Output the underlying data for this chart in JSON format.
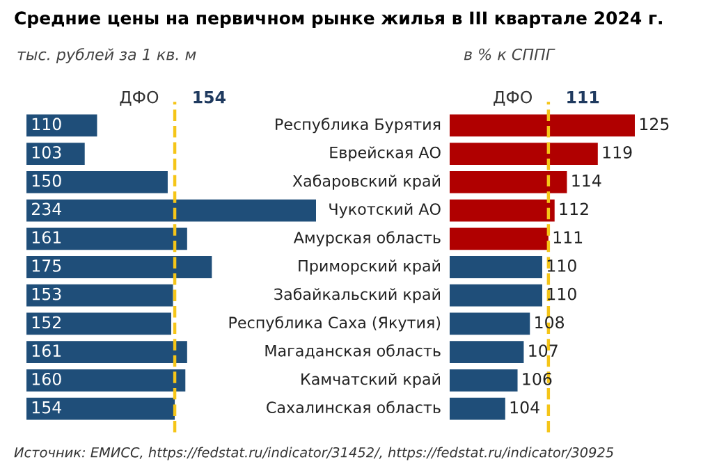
{
  "chart_data": [
    {
      "type": "bar",
      "orientation": "horizontal",
      "title": "Средние цены на первичном рынке жилья в III квартале 2024 г.",
      "subtitle": "тыс. рублей за 1 кв. м",
      "categories": [
        "Республика Бурятия",
        "Еврейская АО",
        "Хабаровский край",
        "Чукотский АО",
        "Амурская область",
        "Приморский край",
        "Забайкальский край",
        "Республика Саха (Якутия)",
        "Магаданская область",
        "Камчатский край",
        "Сахалинская область"
      ],
      "values": [
        110,
        103,
        150,
        234,
        161,
        175,
        153,
        152,
        161,
        160,
        154
      ],
      "color": "#1f4e79",
      "xlim": [
        70,
        234
      ],
      "data_labels": true,
      "ref_lines": [
        {
          "axis": "x",
          "value": 154,
          "label": "ДФО",
          "color": "#f5c518",
          "line_style": "dashed"
        }
      ],
      "annotations": [
        {
          "text": "154",
          "x": 154
        },
        "Источник: ЕМИСС, https://fedstat.ru/indicator/31452/, https://fedstat.ru/indicator/30925"
      ]
    },
    {
      "type": "bar",
      "orientation": "horizontal",
      "subtitle": "в % к СППГ",
      "categories": [
        null,
        null,
        null,
        null,
        null,
        null,
        null,
        null,
        null,
        null,
        null
      ],
      "values": [
        125,
        119,
        114,
        112,
        111,
        110,
        110,
        108,
        107,
        106,
        104
      ],
      "colors": [
        "#b00000",
        "#b00000",
        "#b00000",
        "#b00000",
        "#b00000",
        "#1f4e79",
        "#1f4e79",
        "#1f4e79",
        "#1f4e79",
        "#1f4e79",
        "#1f4e79"
      ],
      "xlim": [
        95,
        125
      ],
      "data_labels": true,
      "ref_lines": [
        {
          "axis": "x",
          "value": 111,
          "label": "ДФО",
          "color": "#f5c518",
          "line_style": "dashed"
        }
      ],
      "annotations": [
        {
          "text": "111",
          "x": 111
        }
      ]
    }
  ]
}
